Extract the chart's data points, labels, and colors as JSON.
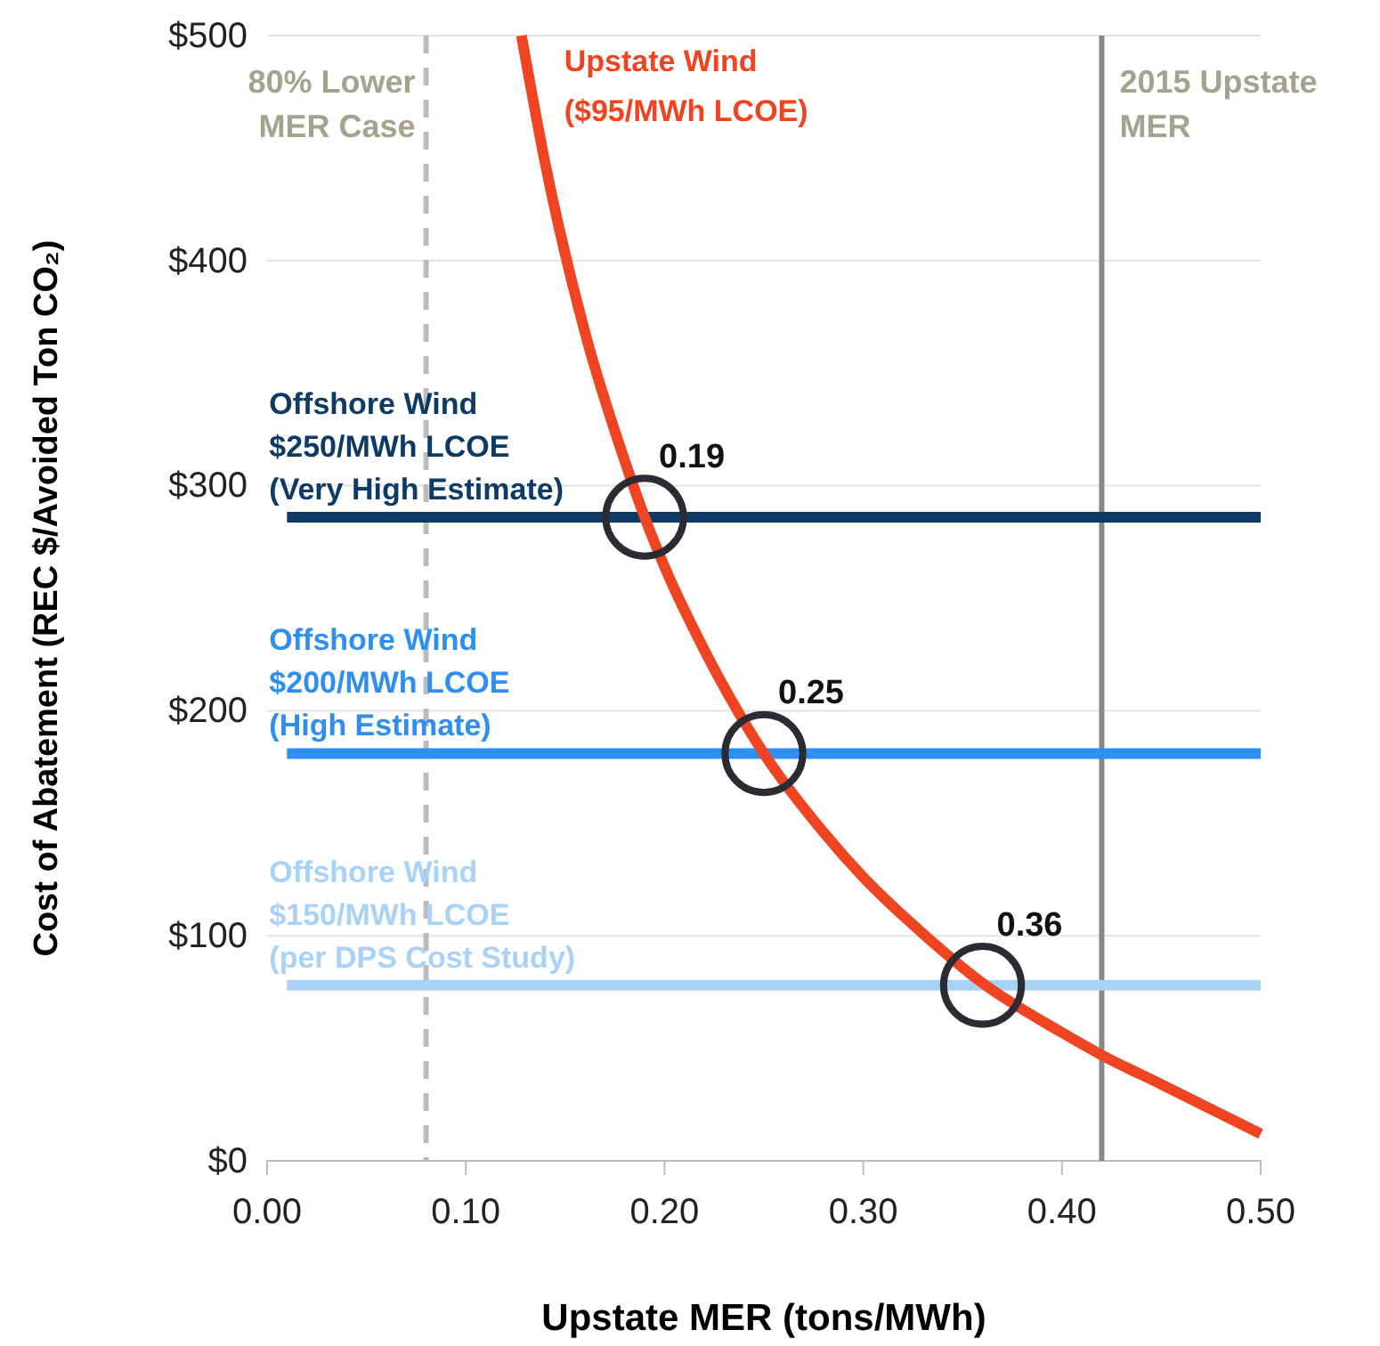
{
  "chart_data": {
    "type": "line",
    "xlabel": "Upstate MER (tons/MWh)",
    "ylabel": "Cost of Abatement (REC $/Avoided Ton CO₂)",
    "xlim": [
      0,
      0.5
    ],
    "xticks": [
      {
        "value": 0,
        "label": "0.00"
      },
      {
        "value": 0.1,
        "label": "0.10"
      },
      {
        "value": 0.2,
        "label": "0.20"
      },
      {
        "value": 0.3,
        "label": "0.30"
      },
      {
        "value": 0.4,
        "label": "0.40"
      },
      {
        "value": 0.5,
        "label": "0.50"
      }
    ],
    "ylim": [
      0,
      500
    ],
    "yticks": [
      {
        "value": 0,
        "label": "$0"
      },
      {
        "value": 100,
        "label": "$100"
      },
      {
        "value": 200,
        "label": "$200"
      },
      {
        "value": 300,
        "label": "$300"
      },
      {
        "value": 400,
        "label": "$400"
      },
      {
        "value": 500,
        "label": "$500"
      }
    ],
    "grid": "y",
    "line_style": "solid",
    "series": [
      {
        "name": "Offshore Wind\n$250/MWh LCOE\n(Very High Estimate)",
        "color": "#0e3a66",
        "x": [
          0.01,
          0.5
        ],
        "values": [
          286,
          286
        ]
      },
      {
        "name": "Offshore Wind\n$200/MWh LCOE\n(High Estimate)",
        "color": "#2e8ff0",
        "x": [
          0.01,
          0.5
        ],
        "values": [
          181,
          181
        ]
      },
      {
        "name": "Offshore Wind\n$150/MWh LCOE\n(per DPS Cost Study)",
        "color": "#a9d2f7",
        "x": [
          0.01,
          0.5
        ],
        "values": [
          78,
          78
        ]
      },
      {
        "name": "Upstate Wind\n($95/MWh LCOE)",
        "color": "#ee4422",
        "x": [
          0.128,
          0.14,
          0.16,
          0.18,
          0.19,
          0.2,
          0.22,
          0.25,
          0.28,
          0.3,
          0.33,
          0.36,
          0.4,
          0.42,
          0.45,
          0.5
        ],
        "values": [
          500,
          443,
          368,
          311,
          286,
          264,
          227,
          181,
          146,
          126,
          101,
          79,
          57,
          47,
          34,
          12
        ]
      },
      {
        "type": "scatter",
        "marker": "circle",
        "color": "#2b2b33",
        "x": [
          0.19,
          0.25,
          0.36
        ],
        "values": [
          286,
          181,
          78
        ]
      }
    ],
    "ref_lines": [
      {
        "axis": "x",
        "value": 0.08,
        "label": "80% Lower\nMER Case",
        "color": "#bbbbbb",
        "line_style": "dashed"
      },
      {
        "axis": "x",
        "value": 0.42,
        "label": "2015 Upstate\nMER",
        "color": "#888888",
        "line_style": "solid"
      }
    ],
    "annotations": [
      {
        "text": "0.19",
        "x": 0.19,
        "y": 286
      },
      {
        "text": "0.25",
        "x": 0.25,
        "y": 181
      },
      {
        "text": "0.36",
        "x": 0.36,
        "y": 78
      }
    ]
  }
}
